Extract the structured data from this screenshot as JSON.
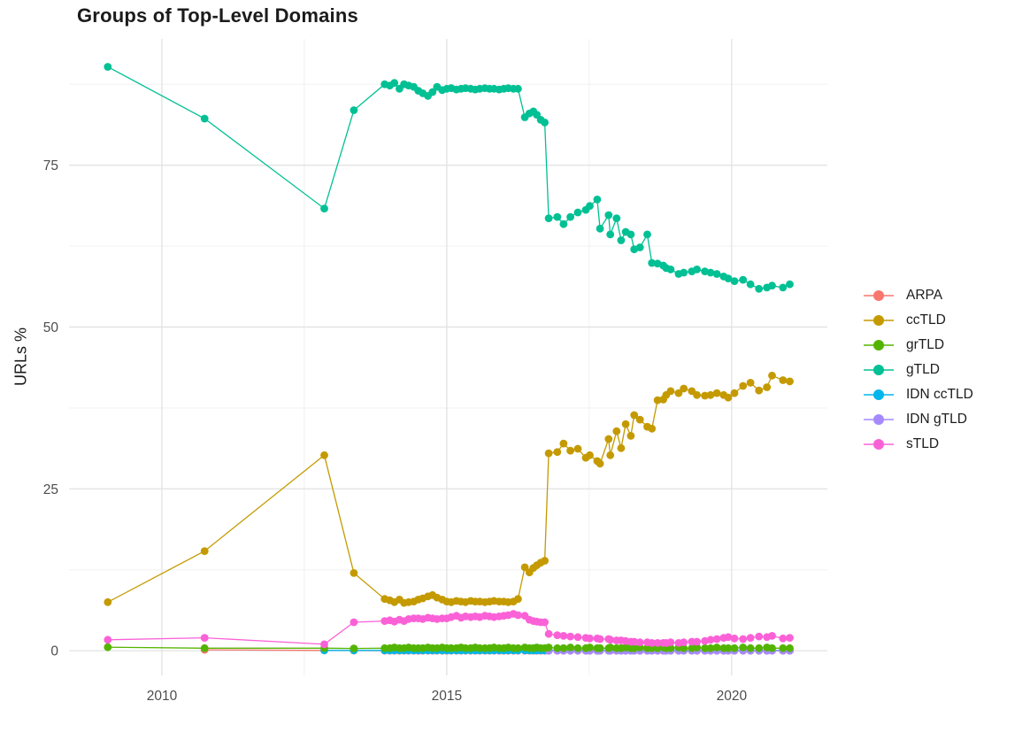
{
  "title": "Groups of Top-Level Domains",
  "y_axis": {
    "label": "URLs %",
    "ticks": [
      0,
      25,
      50,
      75
    ],
    "tick_labels": [
      "0",
      "25",
      "50",
      "75"
    ],
    "minor_ticks": [
      12.5,
      37.5,
      62.5,
      87.5
    ],
    "range": [
      -3.8,
      94.5
    ]
  },
  "x_axis": {
    "ticks": [
      2010,
      2015,
      2020
    ],
    "tick_labels": [
      "2010",
      "2015",
      "2020"
    ],
    "minor_ticks": [
      2012.5,
      2017.5
    ],
    "range": [
      2008.37,
      2021.68
    ]
  },
  "style": {
    "background": "#FFFFFF",
    "grid_major_color": "#E4E4E4",
    "grid_minor_color": "#EFEFEF",
    "tick_label_color": "#4D4D4D",
    "text_color": "#1B1B1B"
  },
  "legend": {
    "entries": [
      "ARPA",
      "ccTLD",
      "grTLD",
      "gTLD",
      "IDN ccTLD",
      "IDN gTLD",
      "sTLD"
    ]
  },
  "chart_data": {
    "type": "line",
    "title": "Groups of Top-Level Domains",
    "xlabel": "",
    "ylabel": "URLs %",
    "xlim": [
      2008.37,
      2021.68
    ],
    "ylim": [
      -3.8,
      94.5
    ],
    "grid": true,
    "legend_position": "right",
    "x_mid": [
      2014.0,
      2014.08,
      2014.17,
      2014.25,
      2014.33,
      2014.42,
      2014.5,
      2014.58,
      2014.67,
      2014.75,
      2014.83,
      2014.92,
      2015.0,
      2015.08,
      2015.17,
      2015.25,
      2015.33,
      2015.42,
      2015.5,
      2015.58,
      2015.67,
      2015.75,
      2015.83,
      2015.92,
      2016.0,
      2016.08,
      2016.17,
      2016.25,
      2016.37,
      2016.45,
      2016.52,
      2016.58,
      2016.65,
      2016.72
    ],
    "x_late": [
      2016.79,
      2016.94,
      2017.05,
      2017.17,
      2017.3,
      2017.44,
      2017.51,
      2017.64,
      2017.69,
      2017.84,
      2017.87,
      2017.98,
      2018.06,
      2018.14,
      2018.23,
      2018.29,
      2018.39,
      2018.52,
      2018.6,
      2018.7,
      2018.8,
      2018.85,
      2018.93,
      2019.07,
      2019.16,
      2019.3,
      2019.39,
      2019.53,
      2019.63,
      2019.74,
      2019.86,
      2019.94,
      2020.05,
      2020.2,
      2020.33,
      2020.48,
      2020.62,
      2020.71,
      2020.9,
      2021.02
    ],
    "series": [
      {
        "name": "ARPA",
        "color": "#F8766D",
        "early": [
          [
            2010.75,
            0.15
          ],
          [
            2012.85,
            0.05
          ],
          [
            2013.37,
            0.03
          ],
          [
            2013.91,
            0.02
          ]
        ],
        "mid": 0.02,
        "late": 0.02
      },
      {
        "name": "ccTLD",
        "color": "#C49A00",
        "early": [
          [
            2009.05,
            7.5
          ],
          [
            2010.75,
            15.4
          ],
          [
            2012.85,
            30.2
          ],
          [
            2013.37,
            12.0
          ],
          [
            2013.91,
            8.0
          ]
        ],
        "mid": [
          7.8,
          7.5,
          7.9,
          7.4,
          7.5,
          7.6,
          7.9,
          8.1,
          8.4,
          8.6,
          8.2,
          7.9,
          7.6,
          7.5,
          7.7,
          7.6,
          7.5,
          7.7,
          7.6,
          7.6,
          7.5,
          7.6,
          7.7,
          7.6,
          7.6,
          7.5,
          7.6,
          8.0,
          12.9,
          12.1,
          12.8,
          13.2,
          13.6,
          13.9
        ],
        "late": [
          30.5,
          30.7,
          32.0,
          30.9,
          31.2,
          29.8,
          30.2,
          29.3,
          28.9,
          32.7,
          30.2,
          33.9,
          31.3,
          35.0,
          33.2,
          36.4,
          35.7,
          34.6,
          34.3,
          38.7,
          38.8,
          39.5,
          40.1,
          39.8,
          40.5,
          40.1,
          39.5,
          39.4,
          39.5,
          39.8,
          39.5,
          39.1,
          39.8,
          40.9,
          41.4,
          40.2,
          40.7,
          42.5,
          41.8,
          41.6
        ]
      },
      {
        "name": "grTLD",
        "color": "#53B400",
        "early": [
          [
            2009.05,
            0.55
          ],
          [
            2010.75,
            0.4
          ],
          [
            2012.85,
            0.4
          ],
          [
            2013.37,
            0.35
          ],
          [
            2013.91,
            0.4
          ]
        ],
        "mid": [
          0.4,
          0.5,
          0.4,
          0.4,
          0.5,
          0.4,
          0.4,
          0.4,
          0.5,
          0.4,
          0.4,
          0.5,
          0.4,
          0.4,
          0.4,
          0.5,
          0.4,
          0.4,
          0.5,
          0.4,
          0.4,
          0.4,
          0.5,
          0.4,
          0.4,
          0.5,
          0.4,
          0.4,
          0.5,
          0.4,
          0.4,
          0.5,
          0.4,
          0.4
        ],
        "late": [
          0.5,
          0.4,
          0.4,
          0.5,
          0.4,
          0.4,
          0.5,
          0.4,
          0.4,
          0.4,
          0.5,
          0.4,
          0.4,
          0.5,
          0.4,
          0.4,
          0.5,
          0.4,
          0.4,
          0.4,
          0.5,
          0.4,
          0.4,
          0.5,
          0.4,
          0.4,
          0.5,
          0.4,
          0.4,
          0.5,
          0.4,
          0.4,
          0.4,
          0.5,
          0.4,
          0.4,
          0.5,
          0.4,
          0.4,
          0.4
        ]
      },
      {
        "name": "gTLD",
        "color": "#00C094",
        "early": [
          [
            2009.05,
            90.2
          ],
          [
            2010.75,
            82.2
          ],
          [
            2012.85,
            68.3
          ],
          [
            2013.37,
            83.5
          ],
          [
            2013.91,
            87.5
          ]
        ],
        "mid": [
          87.3,
          87.7,
          86.8,
          87.5,
          87.3,
          87.1,
          86.5,
          86.1,
          85.7,
          86.3,
          87.1,
          86.6,
          86.8,
          86.9,
          86.7,
          86.8,
          86.9,
          86.8,
          86.7,
          86.8,
          86.9,
          86.8,
          86.8,
          86.7,
          86.8,
          86.9,
          86.8,
          86.8,
          82.4,
          83.0,
          83.3,
          82.8,
          82.0,
          81.6
        ],
        "late": [
          66.8,
          67.0,
          65.9,
          67.0,
          67.7,
          68.1,
          68.7,
          69.7,
          65.2,
          67.3,
          64.3,
          66.8,
          63.4,
          64.7,
          64.3,
          62.0,
          62.3,
          64.3,
          59.9,
          59.8,
          59.5,
          59.1,
          58.9,
          58.2,
          58.4,
          58.6,
          58.9,
          58.6,
          58.4,
          58.2,
          57.8,
          57.5,
          57.1,
          57.3,
          56.6,
          55.9,
          56.1,
          56.4,
          56.1,
          56.6
        ]
      },
      {
        "name": "IDN ccTLD",
        "color": "#00B6EB",
        "early": [
          [
            2012.85,
            0.05
          ],
          [
            2013.37,
            0.05
          ],
          [
            2013.91,
            0.05
          ]
        ],
        "mid": 0.05,
        "late": 0.05
      },
      {
        "name": "IDN gTLD",
        "color": "#A58AFF",
        "early": [],
        "mid": null,
        "late": 0.0
      },
      {
        "name": "sTLD",
        "color": "#FB61D7",
        "early": [
          [
            2009.05,
            1.7
          ],
          [
            2010.75,
            2.0
          ],
          [
            2012.85,
            1.0
          ],
          [
            2013.37,
            4.4
          ],
          [
            2013.91,
            4.6
          ]
        ],
        "mid": [
          4.7,
          4.5,
          4.8,
          4.6,
          4.9,
          5.0,
          5.0,
          4.9,
          5.1,
          5.0,
          4.9,
          5.0,
          5.0,
          5.2,
          5.4,
          5.1,
          5.3,
          5.2,
          5.3,
          5.2,
          5.4,
          5.3,
          5.2,
          5.3,
          5.4,
          5.5,
          5.7,
          5.5,
          5.4,
          4.8,
          4.6,
          4.5,
          4.4,
          4.4
        ],
        "late": [
          2.6,
          2.4,
          2.3,
          2.2,
          2.1,
          2.0,
          1.9,
          1.9,
          1.8,
          1.8,
          1.7,
          1.6,
          1.6,
          1.5,
          1.4,
          1.4,
          1.3,
          1.3,
          1.2,
          1.2,
          1.2,
          1.2,
          1.3,
          1.2,
          1.3,
          1.4,
          1.4,
          1.5,
          1.7,
          1.8,
          2.0,
          2.1,
          1.9,
          1.8,
          2.0,
          2.2,
          2.1,
          2.3,
          1.9,
          2.0
        ]
      }
    ]
  }
}
